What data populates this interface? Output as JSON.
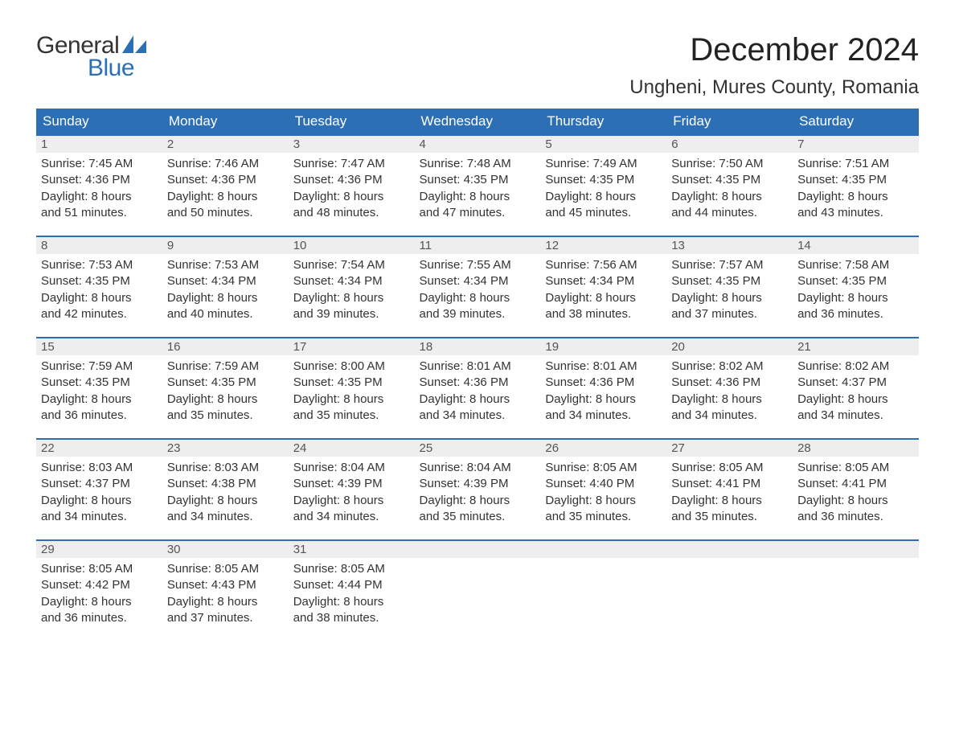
{
  "logo": {
    "word1": "General",
    "word2": "Blue"
  },
  "title": "December 2024",
  "location": "Ungheni, Mures County, Romania",
  "colors": {
    "header_bg": "#2c6fb5",
    "header_text": "#ffffff",
    "daynum_bg": "#eeeeee",
    "daynum_text": "#555555",
    "body_text": "#333333",
    "logo_blue": "#2c6fb5",
    "row_border": "#2c6fb5",
    "page_bg": "#ffffff"
  },
  "day_headers": [
    "Sunday",
    "Monday",
    "Tuesday",
    "Wednesday",
    "Thursday",
    "Friday",
    "Saturday"
  ],
  "weeks": [
    [
      {
        "n": "1",
        "sunrise": "7:45 AM",
        "sunset": "4:36 PM",
        "dl1": "Daylight: 8 hours",
        "dl2": "and 51 minutes."
      },
      {
        "n": "2",
        "sunrise": "7:46 AM",
        "sunset": "4:36 PM",
        "dl1": "Daylight: 8 hours",
        "dl2": "and 50 minutes."
      },
      {
        "n": "3",
        "sunrise": "7:47 AM",
        "sunset": "4:36 PM",
        "dl1": "Daylight: 8 hours",
        "dl2": "and 48 minutes."
      },
      {
        "n": "4",
        "sunrise": "7:48 AM",
        "sunset": "4:35 PM",
        "dl1": "Daylight: 8 hours",
        "dl2": "and 47 minutes."
      },
      {
        "n": "5",
        "sunrise": "7:49 AM",
        "sunset": "4:35 PM",
        "dl1": "Daylight: 8 hours",
        "dl2": "and 45 minutes."
      },
      {
        "n": "6",
        "sunrise": "7:50 AM",
        "sunset": "4:35 PM",
        "dl1": "Daylight: 8 hours",
        "dl2": "and 44 minutes."
      },
      {
        "n": "7",
        "sunrise": "7:51 AM",
        "sunset": "4:35 PM",
        "dl1": "Daylight: 8 hours",
        "dl2": "and 43 minutes."
      }
    ],
    [
      {
        "n": "8",
        "sunrise": "7:53 AM",
        "sunset": "4:35 PM",
        "dl1": "Daylight: 8 hours",
        "dl2": "and 42 minutes."
      },
      {
        "n": "9",
        "sunrise": "7:53 AM",
        "sunset": "4:34 PM",
        "dl1": "Daylight: 8 hours",
        "dl2": "and 40 minutes."
      },
      {
        "n": "10",
        "sunrise": "7:54 AM",
        "sunset": "4:34 PM",
        "dl1": "Daylight: 8 hours",
        "dl2": "and 39 minutes."
      },
      {
        "n": "11",
        "sunrise": "7:55 AM",
        "sunset": "4:34 PM",
        "dl1": "Daylight: 8 hours",
        "dl2": "and 39 minutes."
      },
      {
        "n": "12",
        "sunrise": "7:56 AM",
        "sunset": "4:34 PM",
        "dl1": "Daylight: 8 hours",
        "dl2": "and 38 minutes."
      },
      {
        "n": "13",
        "sunrise": "7:57 AM",
        "sunset": "4:35 PM",
        "dl1": "Daylight: 8 hours",
        "dl2": "and 37 minutes."
      },
      {
        "n": "14",
        "sunrise": "7:58 AM",
        "sunset": "4:35 PM",
        "dl1": "Daylight: 8 hours",
        "dl2": "and 36 minutes."
      }
    ],
    [
      {
        "n": "15",
        "sunrise": "7:59 AM",
        "sunset": "4:35 PM",
        "dl1": "Daylight: 8 hours",
        "dl2": "and 36 minutes."
      },
      {
        "n": "16",
        "sunrise": "7:59 AM",
        "sunset": "4:35 PM",
        "dl1": "Daylight: 8 hours",
        "dl2": "and 35 minutes."
      },
      {
        "n": "17",
        "sunrise": "8:00 AM",
        "sunset": "4:35 PM",
        "dl1": "Daylight: 8 hours",
        "dl2": "and 35 minutes."
      },
      {
        "n": "18",
        "sunrise": "8:01 AM",
        "sunset": "4:36 PM",
        "dl1": "Daylight: 8 hours",
        "dl2": "and 34 minutes."
      },
      {
        "n": "19",
        "sunrise": "8:01 AM",
        "sunset": "4:36 PM",
        "dl1": "Daylight: 8 hours",
        "dl2": "and 34 minutes."
      },
      {
        "n": "20",
        "sunrise": "8:02 AM",
        "sunset": "4:36 PM",
        "dl1": "Daylight: 8 hours",
        "dl2": "and 34 minutes."
      },
      {
        "n": "21",
        "sunrise": "8:02 AM",
        "sunset": "4:37 PM",
        "dl1": "Daylight: 8 hours",
        "dl2": "and 34 minutes."
      }
    ],
    [
      {
        "n": "22",
        "sunrise": "8:03 AM",
        "sunset": "4:37 PM",
        "dl1": "Daylight: 8 hours",
        "dl2": "and 34 minutes."
      },
      {
        "n": "23",
        "sunrise": "8:03 AM",
        "sunset": "4:38 PM",
        "dl1": "Daylight: 8 hours",
        "dl2": "and 34 minutes."
      },
      {
        "n": "24",
        "sunrise": "8:04 AM",
        "sunset": "4:39 PM",
        "dl1": "Daylight: 8 hours",
        "dl2": "and 34 minutes."
      },
      {
        "n": "25",
        "sunrise": "8:04 AM",
        "sunset": "4:39 PM",
        "dl1": "Daylight: 8 hours",
        "dl2": "and 35 minutes."
      },
      {
        "n": "26",
        "sunrise": "8:05 AM",
        "sunset": "4:40 PM",
        "dl1": "Daylight: 8 hours",
        "dl2": "and 35 minutes."
      },
      {
        "n": "27",
        "sunrise": "8:05 AM",
        "sunset": "4:41 PM",
        "dl1": "Daylight: 8 hours",
        "dl2": "and 35 minutes."
      },
      {
        "n": "28",
        "sunrise": "8:05 AM",
        "sunset": "4:41 PM",
        "dl1": "Daylight: 8 hours",
        "dl2": "and 36 minutes."
      }
    ],
    [
      {
        "n": "29",
        "sunrise": "8:05 AM",
        "sunset": "4:42 PM",
        "dl1": "Daylight: 8 hours",
        "dl2": "and 36 minutes."
      },
      {
        "n": "30",
        "sunrise": "8:05 AM",
        "sunset": "4:43 PM",
        "dl1": "Daylight: 8 hours",
        "dl2": "and 37 minutes."
      },
      {
        "n": "31",
        "sunrise": "8:05 AM",
        "sunset": "4:44 PM",
        "dl1": "Daylight: 8 hours",
        "dl2": "and 38 minutes."
      },
      null,
      null,
      null,
      null
    ]
  ],
  "labels": {
    "sunrise": "Sunrise: ",
    "sunset": "Sunset: "
  }
}
